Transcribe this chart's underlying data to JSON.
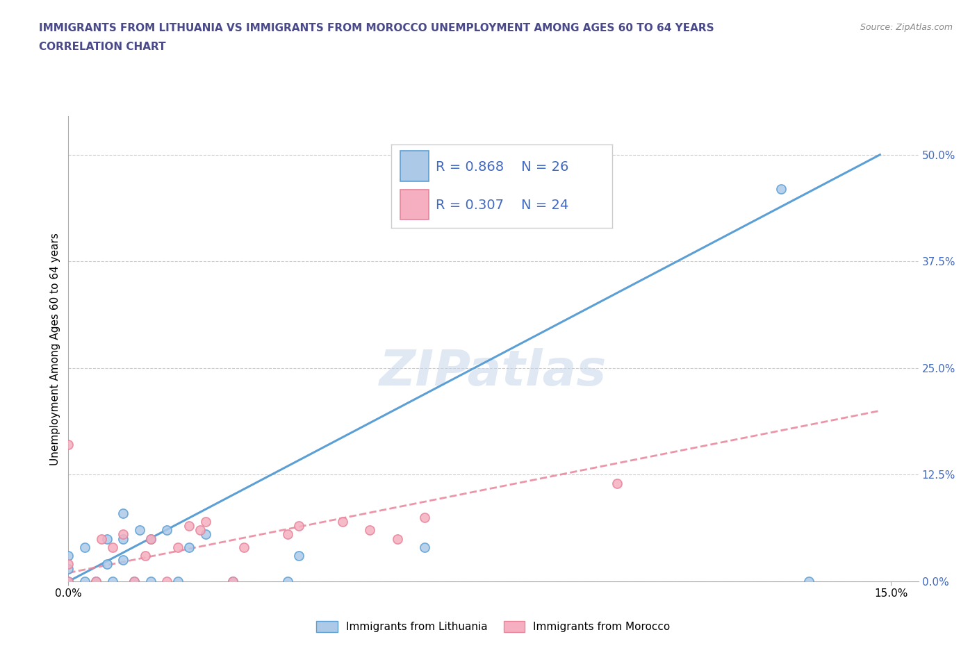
{
  "title_line1": "IMMIGRANTS FROM LITHUANIA VS IMMIGRANTS FROM MOROCCO UNEMPLOYMENT AMONG AGES 60 TO 64 YEARS",
  "title_line2": "CORRELATION CHART",
  "source_text": "Source: ZipAtlas.com",
  "ylabel": "Unemployment Among Ages 60 to 64 years",
  "xlim": [
    0.0,
    0.155
  ],
  "ylim": [
    0.0,
    0.545
  ],
  "xtick_labels": [
    "0.0%",
    "15.0%"
  ],
  "ytick_labels_pct": [
    "0.0%",
    "12.5%",
    "25.0%",
    "37.5%",
    "50.0%"
  ],
  "ytick_vals": [
    0.0,
    0.125,
    0.25,
    0.375,
    0.5
  ],
  "xtick_vals": [
    0.0,
    0.15
  ],
  "watermark": "ZIPatlas",
  "legend_R1": "R = 0.868",
  "legend_N1": "N = 26",
  "legend_R2": "R = 0.307",
  "legend_N2": "N = 24",
  "legend_label1": "Immigrants from Lithuania",
  "legend_label2": "Immigrants from Morocco",
  "color_lithuania": "#adc9e8",
  "color_morocco": "#f5afc0",
  "color_line1": "#5b9fd4",
  "color_line2": "#e8839a",
  "color_title": "#4a4a8a",
  "color_legend_text": "#4169c0",
  "color_ytick": "#4169c0",
  "lithuania_x": [
    0.0,
    0.0,
    0.0,
    0.003,
    0.003,
    0.005,
    0.007,
    0.007,
    0.008,
    0.01,
    0.01,
    0.01,
    0.012,
    0.013,
    0.015,
    0.015,
    0.018,
    0.02,
    0.022,
    0.025,
    0.03,
    0.04,
    0.042,
    0.065,
    0.13,
    0.135
  ],
  "lithuania_y": [
    0.0,
    0.015,
    0.03,
    0.0,
    0.04,
    0.0,
    0.02,
    0.05,
    0.0,
    0.025,
    0.05,
    0.08,
    0.0,
    0.06,
    0.0,
    0.05,
    0.06,
    0.0,
    0.04,
    0.055,
    0.0,
    0.0,
    0.03,
    0.04,
    0.46,
    0.0
  ],
  "morocco_x": [
    0.0,
    0.0,
    0.0,
    0.005,
    0.006,
    0.008,
    0.01,
    0.012,
    0.014,
    0.015,
    0.018,
    0.02,
    0.022,
    0.024,
    0.025,
    0.03,
    0.032,
    0.04,
    0.042,
    0.05,
    0.055,
    0.06,
    0.065,
    0.1
  ],
  "morocco_y": [
    0.0,
    0.02,
    0.16,
    0.0,
    0.05,
    0.04,
    0.055,
    0.0,
    0.03,
    0.05,
    0.0,
    0.04,
    0.065,
    0.06,
    0.07,
    0.0,
    0.04,
    0.055,
    0.065,
    0.07,
    0.06,
    0.05,
    0.075,
    0.115
  ],
  "line1_x": [
    0.0,
    0.148
  ],
  "line1_y": [
    0.0,
    0.5
  ],
  "line2_x": [
    0.0,
    0.148
  ],
  "line2_y": [
    0.01,
    0.2
  ]
}
